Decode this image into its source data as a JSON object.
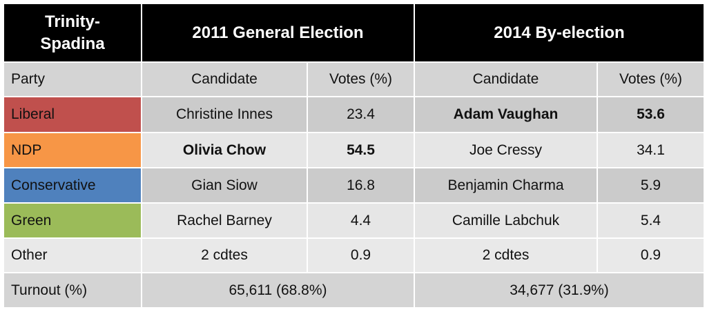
{
  "header": {
    "title": "Trinity-Spadina",
    "election_2011": "2011 General Election",
    "election_2014": "2014 By-election"
  },
  "table": {
    "columns": [
      "Party",
      "Candidate",
      "Votes (%)",
      "Candidate",
      "Votes (%)"
    ],
    "rows": [
      [
        "Liberal",
        "Christine Innes",
        23.4,
        "Adam Vaughan",
        53.6
      ],
      [
        "NDP",
        "Olivia Chow",
        54.5,
        "Joe Cressy",
        34.1
      ],
      [
        "Conservative",
        "Gian Siow",
        16.8,
        "Benjamin Charma",
        5.9
      ],
      [
        "Green",
        "Rachel Barney",
        4.4,
        "Camille Labchuk",
        5.4
      ],
      [
        "Other",
        "2 cdtes",
        0.9,
        "2 cdtes",
        0.9
      ]
    ],
    "turnout": {
      "label": "Turnout (%)",
      "result_2011": "65,611 (68.8%)",
      "result_2014": "34,677 (31.9%)"
    }
  }
}
